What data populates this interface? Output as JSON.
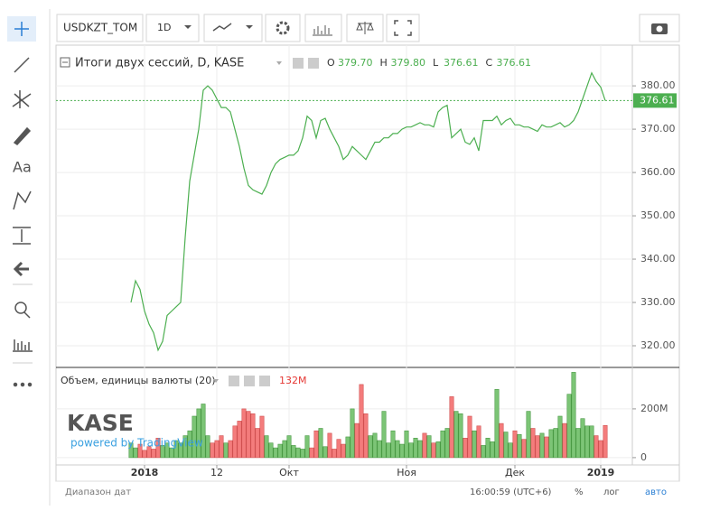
{
  "toolbar": {
    "symbol": "USDKZT_TOM",
    "interval": "1D"
  },
  "legend": {
    "title": "Итоги двух сессий, D, KASE",
    "ohlc": [
      {
        "key": "O",
        "value": "379.70"
      },
      {
        "key": "H",
        "value": "379.80"
      },
      {
        "key": "L",
        "value": "376.61"
      },
      {
        "key": "C",
        "value": "376.61"
      }
    ],
    "volume_title": "Объем, единицы валюты (20)",
    "volume_value": "132M"
  },
  "logo": {
    "brand": "KASE",
    "powered": "powered by TradingView"
  },
  "footer": {
    "range": "Диапазон дат",
    "time": "16:00:59 (UTC+6)",
    "percent": "%",
    "log": "лог",
    "auto": "авто"
  },
  "chart_data": {
    "type": "line",
    "color": "#4caf50",
    "up_color": "#7cc576",
    "down_color": "#f47c7c",
    "x": [
      0,
      1,
      2,
      3,
      4,
      5,
      6,
      7,
      8,
      9,
      10,
      11,
      12,
      13,
      14,
      15,
      16,
      17,
      18,
      19,
      20,
      21,
      22,
      23,
      24,
      25,
      26,
      27,
      28,
      29,
      30,
      31,
      32,
      33,
      34,
      35,
      36,
      37,
      38,
      39,
      40,
      41,
      42,
      43,
      44,
      45,
      46,
      47,
      48,
      49,
      50,
      51,
      52,
      53,
      54,
      55,
      56,
      57,
      58,
      59,
      60,
      61,
      62,
      63,
      64,
      65,
      66,
      67,
      68,
      69,
      70,
      71,
      72,
      73,
      74,
      75,
      76,
      77,
      78,
      79,
      80,
      81,
      82,
      83,
      84,
      85,
      86,
      87,
      88,
      89,
      90,
      91,
      92,
      93,
      94,
      95,
      96,
      97,
      98,
      99,
      100,
      101,
      102,
      103,
      104,
      105
    ],
    "xlim": [
      -16.6,
      111
    ],
    "xticks": [
      {
        "value": 3,
        "label": "2018"
      },
      {
        "value": 19,
        "label": "12"
      },
      {
        "value": 35,
        "label": "Окт"
      },
      {
        "value": 61,
        "label": "Ноя"
      },
      {
        "value": 85,
        "label": "Дек"
      },
      {
        "value": 104,
        "label": "2019"
      }
    ],
    "series": [
      {
        "name": "Итоги двух сессий",
        "values": [
          330,
          335,
          333,
          328,
          325,
          323,
          319,
          321,
          327,
          328,
          329,
          330,
          345,
          358,
          364,
          370,
          379,
          380,
          379,
          377,
          375,
          375,
          374,
          370,
          366,
          361,
          357,
          356,
          355.5,
          355,
          357,
          360,
          362,
          363,
          363.5,
          364,
          364,
          365,
          368,
          373,
          372,
          368,
          372,
          372.5,
          370,
          368,
          366,
          363,
          364,
          366,
          365,
          364,
          363,
          365,
          367,
          367,
          368,
          368,
          369,
          369,
          370,
          370.5,
          370.5,
          371,
          371.5,
          371,
          371,
          370.5,
          374,
          375,
          375.5,
          368,
          369,
          370,
          367,
          366.5,
          368,
          365,
          372,
          372,
          372,
          373,
          371,
          372,
          372.5,
          371,
          371,
          370.5,
          370.5,
          370,
          369.5,
          371,
          370.5,
          370.5,
          371,
          371.5,
          370.5,
          371,
          372,
          374,
          377,
          380,
          383,
          381,
          379.7,
          376.6
        ]
      }
    ],
    "last_price": {
      "value": 376.61,
      "label": "376.61"
    },
    "ylim": [
      315,
      389.4
    ],
    "yticks": [
      {
        "value": 320,
        "label": "320.00"
      },
      {
        "value": 330,
        "label": "330.00"
      },
      {
        "value": 340,
        "label": "340.00"
      },
      {
        "value": 350,
        "label": "350.00"
      },
      {
        "value": 360,
        "label": "360.00"
      },
      {
        "value": 370,
        "label": "370.00"
      },
      {
        "value": 380,
        "label": "380.00"
      }
    ],
    "volume": [
      60,
      40,
      55,
      30,
      45,
      35,
      80,
      50,
      60,
      40,
      70,
      60,
      90,
      110,
      170,
      200,
      220,
      90,
      60,
      70,
      90,
      60,
      70,
      130,
      150,
      200,
      190,
      180,
      120,
      170,
      90,
      60,
      40,
      55,
      70,
      90,
      50,
      40,
      35,
      90,
      40,
      110,
      120,
      45,
      100,
      35,
      75,
      55,
      85,
      200,
      140,
      300,
      180,
      90,
      100,
      70,
      190,
      60,
      110,
      70,
      55,
      110,
      60,
      80,
      70,
      100,
      90,
      60,
      65,
      110,
      120,
      250,
      190,
      180,
      80,
      170,
      110,
      130,
      50,
      80,
      65,
      280,
      140,
      105,
      60,
      110,
      95,
      75,
      190,
      120,
      90,
      100,
      85,
      115,
      120,
      170,
      140,
      260,
      350,
      120,
      160,
      130,
      130,
      90,
      70,
      132
    ],
    "vlim": [
      -30,
      370
    ],
    "vticks": [
      0,
      {
        "value": 200,
        "label": "200M"
      }
    ]
  }
}
